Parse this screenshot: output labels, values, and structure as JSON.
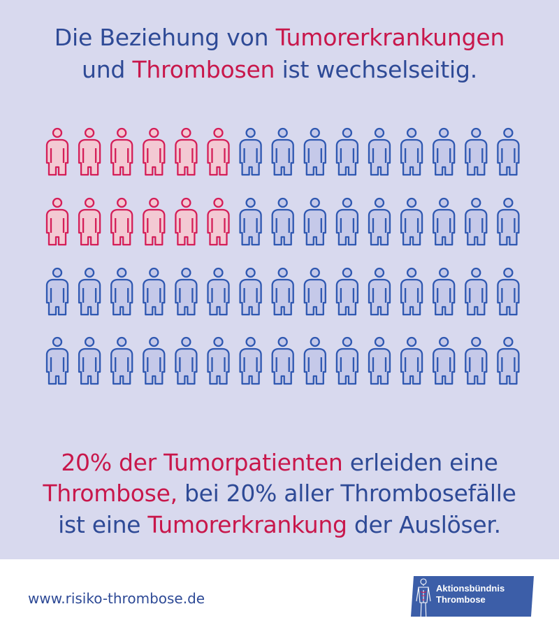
{
  "title": {
    "line1": {
      "part1": "Die Beziehung von ",
      "part2": "Tumorerkrankungen"
    },
    "line2": {
      "part1": "und ",
      "part2": "Thrombosen",
      "part3": " ist wechselseitig."
    }
  },
  "figure": {
    "rows": 4,
    "columns": 15,
    "highlighted_per_row": [
      6,
      6,
      0,
      0
    ],
    "colors": {
      "highlight_stroke": "#d41e58",
      "highlight_fill": "#f3c9d3",
      "normal_stroke": "#2f58b1",
      "normal_fill": "#c5c9e9"
    }
  },
  "caption": {
    "line1": {
      "part1": "20% der Tumorpatienten",
      "part2": " erleiden eine"
    },
    "line2": {
      "part1": "Thrombose,",
      "part2": " bei 20% aller Thrombosefälle"
    },
    "line3": {
      "part1": "ist eine ",
      "part2": "Tumorerkrankung",
      "part3": " der Auslöser."
    }
  },
  "footer": {
    "url": "www.risiko-thrombose.de",
    "logo": {
      "line1": "Aktionsbündnis",
      "line2": "Thrombose",
      "icon": "human-body-icon"
    }
  },
  "colors": {
    "background": "#d8d9ee",
    "text_blue": "#2e4a96",
    "text_red": "#c8174b",
    "logo_blue": "#3c5ea8"
  }
}
